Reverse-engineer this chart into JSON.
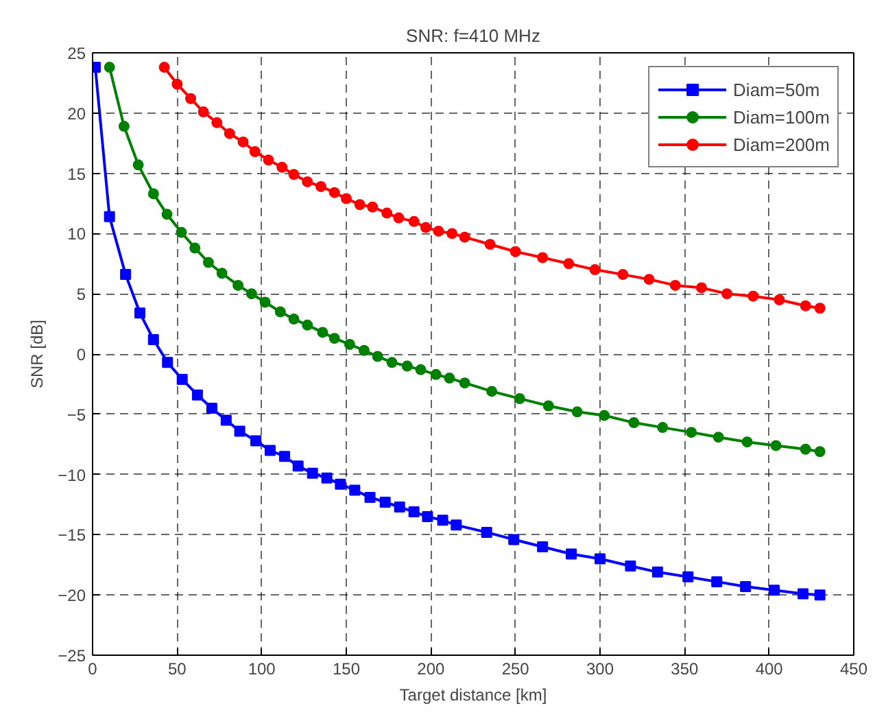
{
  "chart_data": {
    "type": "line",
    "title": "SNR: f=410 MHz",
    "xlabel": "Target distance [km]",
    "ylabel": "SNR [dB]",
    "xlim": [
      0,
      450
    ],
    "xticks": [
      0,
      50,
      100,
      150,
      200,
      250,
      300,
      350,
      400,
      450
    ],
    "ylim": [
      -25,
      25
    ],
    "yticks": [
      -25,
      -20,
      -15,
      -10,
      -5,
      0,
      5,
      10,
      15,
      20,
      25
    ],
    "grid": true,
    "legend": "top right",
    "line_style": "solid",
    "series": [
      {
        "name": "Diam=50m",
        "color": "#0000ff",
        "marker": "square",
        "x": [
          1.6,
          10,
          19.5,
          28,
          36,
          44.3,
          53,
          62,
          70.5,
          79,
          87,
          96.5,
          105,
          113.5,
          121.5,
          130,
          138.5,
          146.5,
          155,
          164,
          173,
          181.5,
          190,
          198,
          207,
          215,
          233,
          249,
          266,
          283,
          300,
          318,
          334,
          352,
          369,
          386,
          403,
          420,
          430
        ],
        "values": [
          23.8,
          11.4,
          6.6,
          3.4,
          1.2,
          -0.7,
          -2.1,
          -3.4,
          -4.5,
          -5.5,
          -6.4,
          -7.2,
          -8.0,
          -8.5,
          -9.3,
          -9.9,
          -10.3,
          -10.8,
          -11.3,
          -11.9,
          -12.3,
          -12.7,
          -13.1,
          -13.5,
          -13.8,
          -14.2,
          -14.8,
          -15.4,
          -16.0,
          -16.6,
          -17.0,
          -17.6,
          -18.1,
          -18.5,
          -18.9,
          -19.3,
          -19.6,
          -19.9,
          -20.0
        ]
      },
      {
        "name": "Diam=100m",
        "color": "#008000",
        "marker": "circle",
        "x": [
          10,
          18.6,
          27,
          36,
          44,
          52.5,
          60.5,
          68.5,
          76.5,
          86,
          94,
          102,
          111,
          119,
          127,
          136,
          143,
          152,
          160.5,
          168.5,
          177,
          186,
          194,
          203,
          211,
          220,
          236,
          252.5,
          269.5,
          286.5,
          302.5,
          320,
          337,
          354,
          370,
          387,
          404,
          421.5,
          430
        ],
        "values": [
          23.8,
          18.9,
          15.7,
          13.3,
          11.6,
          10.1,
          8.8,
          7.6,
          6.7,
          5.7,
          5.0,
          4.3,
          3.5,
          2.9,
          2.4,
          1.8,
          1.3,
          0.8,
          0.3,
          -0.2,
          -0.7,
          -1.0,
          -1.3,
          -1.7,
          -2.0,
          -2.4,
          -3.1,
          -3.7,
          -4.3,
          -4.8,
          -5.1,
          -5.7,
          -6.1,
          -6.5,
          -6.9,
          -7.3,
          -7.6,
          -7.9,
          -8.1
        ]
      },
      {
        "name": "Diam=200m",
        "color": "#ff0000",
        "marker": "circle",
        "x": [
          42.4,
          50,
          58,
          65.5,
          73.5,
          81,
          89,
          96,
          104,
          112,
          119,
          127,
          135,
          143,
          150,
          158,
          165.5,
          174,
          181,
          190,
          197,
          204.5,
          212.5,
          220,
          235,
          250,
          266,
          281.5,
          297,
          313.5,
          329,
          344.5,
          360,
          375,
          390.5,
          406,
          421.5,
          430
        ],
        "values": [
          23.8,
          22.4,
          21.2,
          20.1,
          19.2,
          18.3,
          17.6,
          16.8,
          16.1,
          15.5,
          14.9,
          14.3,
          13.9,
          13.4,
          12.9,
          12.4,
          12.2,
          11.7,
          11.3,
          11.0,
          10.5,
          10.2,
          10.0,
          9.7,
          9.1,
          8.5,
          8.0,
          7.5,
          7.0,
          6.6,
          6.2,
          5.7,
          5.5,
          5.0,
          4.8,
          4.5,
          4.0,
          3.8
        ]
      }
    ]
  }
}
